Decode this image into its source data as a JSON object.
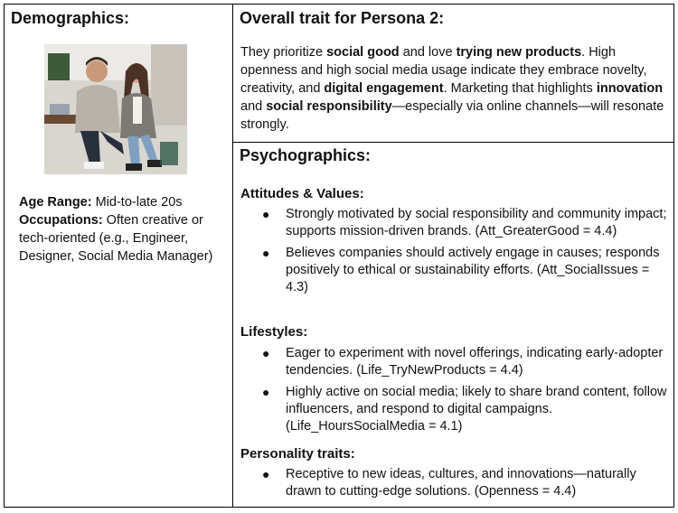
{
  "demographics": {
    "title": "Demographics:",
    "age_label": "Age Range:",
    "age_value": " Mid-to-late 20s",
    "occupations_label": "Occupations:",
    "occupations_value": " Often creative or tech-oriented (e.g., Engineer, Designer, Social Media Manager)"
  },
  "overall": {
    "title": "Overall trait for Persona 2:",
    "t1": "They prioritize ",
    "b1": "social good",
    "t2": " and love ",
    "b2": "trying new products",
    "t3": ". High openness and high social media usage indicate they embrace novelty, creativity, and ",
    "b3": "digital engagement",
    "t4": ". Marketing that highlights ",
    "b4": "innovation",
    "t5": " and ",
    "b5": "social responsibility",
    "t6": "—especially via online channels—will resonate strongly."
  },
  "psychographics": {
    "title": "Psychographics:",
    "sections": [
      {
        "heading": "Attitudes & Values:",
        "items": [
          "Strongly motivated by social responsibility and community impact; supports mission-driven brands. (Att_GreaterGood = 4.4)",
          "Believes companies should actively engage in causes; responds positively to ethical or sustainability efforts. (Att_SocialIssues = 4.3)"
        ]
      },
      {
        "heading": "Lifestyles:",
        "items": [
          "Eager to experiment with novel offerings, indicating early-adopter tendencies. (Life_TryNewProducts = 4.4)",
          "Highly active on social media; likely to share brand content, follow influencers, and respond to digital campaigns. (Life_HoursSocialMedia = 4.1)"
        ]
      },
      {
        "heading": "Personality traits:",
        "items": [
          "Receptive to new ideas, cultures, and innovations—naturally drawn to cutting-edge solutions. (Openness = 4.4)"
        ]
      }
    ]
  }
}
